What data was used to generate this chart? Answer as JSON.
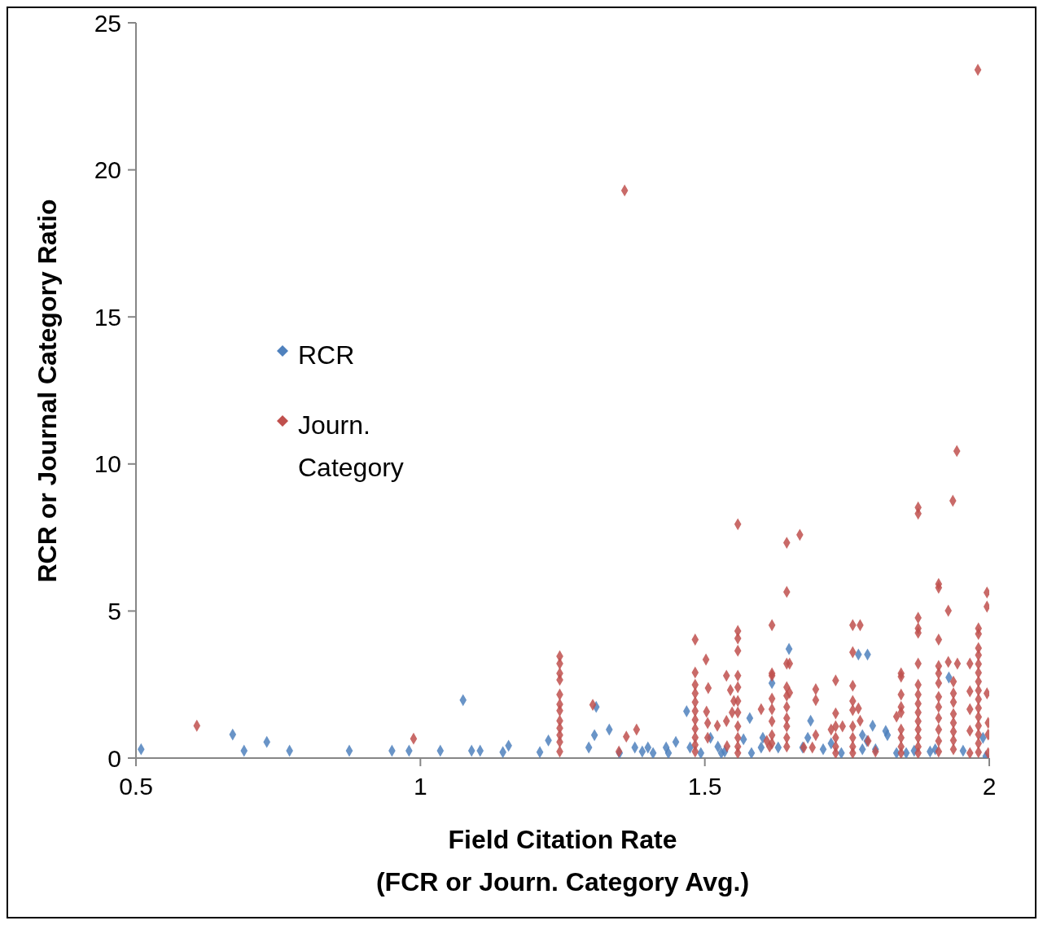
{
  "chart_data": {
    "type": "scatter",
    "xlabel": "Field Citation Rate\n(FCR or Journ. Category Avg.)",
    "ylabel": "RCR or Journal Category Ratio",
    "xlim": [
      0.5,
      2
    ],
    "xticks": [
      0.5,
      1,
      1.5,
      2
    ],
    "ylim": [
      0,
      25
    ],
    "yticks": [
      0,
      5,
      10,
      15,
      20,
      25
    ],
    "legend": "left",
    "marker": "diamond",
    "series": [
      {
        "name": "RCR",
        "color": "#4f81bd",
        "x": [
          0.509,
          0.67,
          0.69,
          0.73,
          0.77,
          0.875,
          0.95,
          0.98,
          1.035,
          1.075,
          1.09,
          1.105,
          1.145,
          1.155,
          1.21,
          1.225,
          1.296,
          1.306,
          1.309,
          1.332,
          1.35,
          1.377,
          1.39,
          1.4,
          1.409,
          1.432,
          1.436,
          1.449,
          1.468,
          1.474,
          1.493,
          1.51,
          1.523,
          1.529,
          1.535,
          1.568,
          1.579,
          1.582,
          1.599,
          1.602,
          1.618,
          1.629,
          1.648,
          1.672,
          1.681,
          1.686,
          1.708,
          1.722,
          1.74,
          1.77,
          1.777,
          1.777,
          1.785,
          1.786,
          1.795,
          1.8,
          1.818,
          1.821,
          1.837,
          1.854,
          1.868,
          1.896,
          1.905,
          1.929,
          1.954,
          1.989,
          1.994
        ],
        "values": [
          0.3,
          0.8,
          0.25,
          0.55,
          0.25,
          0.25,
          0.25,
          0.25,
          0.25,
          1.97,
          0.25,
          0.25,
          0.2,
          0.42,
          0.2,
          0.6,
          0.36,
          0.78,
          1.74,
          0.97,
          0.17,
          0.36,
          0.22,
          0.36,
          0.17,
          0.36,
          0.17,
          0.55,
          1.59,
          0.36,
          0.17,
          0.69,
          0.39,
          0.17,
          0.22,
          0.64,
          1.36,
          0.17,
          0.36,
          0.69,
          2.55,
          0.36,
          3.71,
          0.36,
          0.69,
          1.27,
          0.3,
          0.5,
          0.17,
          3.52,
          0.78,
          0.3,
          0.58,
          3.52,
          1.1,
          0.3,
          0.92,
          0.78,
          0.17,
          0.17,
          0.25,
          0.22,
          0.3,
          2.74,
          0.25,
          0.69,
          0.06
        ]
      },
      {
        "name": "Journ. Category",
        "color": "#c0504d",
        "x": [
          0.607,
          0.988,
          1.245,
          1.245,
          1.245,
          1.245,
          1.245,
          1.245,
          1.245,
          1.245,
          1.245,
          1.245,
          1.245,
          1.245,
          1.303,
          1.349,
          1.359,
          1.362,
          1.38,
          1.483,
          1.483,
          1.483,
          1.483,
          1.483,
          1.483,
          1.483,
          1.483,
          1.483,
          1.483,
          1.483,
          1.502,
          1.506,
          1.503,
          1.505,
          1.505,
          1.522,
          1.538,
          1.538,
          1.539,
          1.545,
          1.551,
          1.548,
          1.558,
          1.558,
          1.558,
          1.558,
          1.558,
          1.558,
          1.558,
          1.558,
          1.558,
          1.558,
          1.558,
          1.558,
          1.599,
          1.609,
          1.614,
          1.618,
          1.618,
          1.618,
          1.618,
          1.618,
          1.618,
          1.618,
          1.618,
          1.644,
          1.644,
          1.644,
          1.644,
          1.644,
          1.644,
          1.644,
          1.644,
          1.644,
          1.644,
          1.649,
          1.649,
          1.667,
          1.695,
          1.695,
          1.695,
          1.674,
          1.689,
          1.73,
          1.73,
          1.73,
          1.73,
          1.73,
          1.73,
          1.722,
          1.742,
          1.76,
          1.76,
          1.76,
          1.76,
          1.76,
          1.76,
          1.76,
          1.76,
          1.76,
          1.773,
          1.77,
          1.773,
          1.787,
          1.8,
          1.845,
          1.845,
          1.845,
          1.845,
          1.845,
          1.845,
          1.845,
          1.845,
          1.845,
          1.837,
          1.875,
          1.875,
          1.875,
          1.875,
          1.875,
          1.875,
          1.875,
          1.875,
          1.875,
          1.875,
          1.875,
          1.875,
          1.875,
          1.875,
          1.875,
          1.911,
          1.911,
          1.911,
          1.911,
          1.911,
          1.911,
          1.911,
          1.911,
          1.911,
          1.911,
          1.911,
          1.911,
          1.928,
          1.928,
          1.936,
          1.943,
          1.937,
          1.937,
          1.937,
          1.937,
          1.937,
          1.937,
          1.937,
          1.937,
          1.944,
          1.966,
          1.966,
          1.966,
          1.966,
          1.966,
          1.981,
          1.981,
          1.981,
          1.981,
          1.981,
          1.981,
          1.981,
          1.981,
          1.981,
          1.981,
          1.981,
          1.981,
          1.981,
          1.981,
          1.981,
          1.98,
          1.996,
          1.996,
          1.996,
          1.998,
          1.998,
          1.998
        ],
        "values": [
          1.1,
          0.66,
          3.46,
          3.21,
          2.88,
          2.66,
          2.16,
          1.83,
          1.61,
          1.27,
          1.02,
          0.78,
          0.55,
          0.22,
          1.81,
          0.22,
          19.3,
          0.73,
          0.97,
          4.03,
          2.91,
          2.49,
          2.2,
          1.9,
          1.6,
          1.3,
          1.0,
          0.7,
          0.45,
          0.22,
          3.35,
          2.38,
          1.58,
          1.19,
          0.69,
          1.1,
          2.8,
          1.26,
          0.4,
          2.31,
          1.94,
          1.55,
          7.95,
          4.32,
          4.07,
          3.65,
          2.8,
          2.41,
          1.94,
          1.55,
          1.08,
          0.69,
          0.39,
          0.17,
          1.66,
          0.58,
          0.39,
          4.52,
          2.88,
          2.8,
          2.02,
          1.66,
          1.25,
          0.78,
          0.5,
          7.32,
          5.65,
          3.21,
          2.41,
          2.12,
          1.74,
          1.36,
          1.08,
          0.69,
          0.39,
          3.21,
          2.22,
          7.59,
          2.34,
          1.97,
          0.78,
          0.36,
          0.36,
          2.64,
          1.52,
          1.08,
          0.69,
          0.39,
          0.17,
          0.97,
          1.08,
          4.52,
          3.6,
          2.46,
          1.94,
          1.63,
          1.08,
          0.69,
          0.39,
          0.17,
          4.52,
          1.69,
          1.27,
          0.58,
          0.22,
          2.88,
          2.77,
          2.16,
          1.74,
          1.55,
          0.97,
          0.69,
          0.39,
          0.17,
          1.41,
          8.52,
          8.31,
          4.77,
          4.41,
          4.26,
          3.21,
          2.49,
          2.16,
          1.85,
          1.55,
          1.25,
          0.97,
          0.69,
          0.39,
          0.17,
          5.92,
          5.79,
          4.03,
          3.13,
          2.88,
          2.55,
          2.08,
          1.74,
          1.36,
          0.97,
          0.58,
          0.22,
          5.01,
          3.27,
          8.75,
          10.44,
          2.6,
          2.2,
          1.9,
          1.5,
          1.2,
          0.9,
          0.6,
          0.3,
          3.21,
          3.21,
          2.27,
          1.66,
          0.93,
          0.17,
          4.41,
          4.22,
          3.74,
          3.5,
          3.2,
          2.9,
          2.6,
          2.3,
          2.0,
          1.7,
          1.4,
          1.1,
          0.8,
          0.5,
          0.2,
          23.4,
          5.63,
          5.15,
          2.2,
          1.2,
          0.8,
          0.17
        ]
      }
    ]
  }
}
